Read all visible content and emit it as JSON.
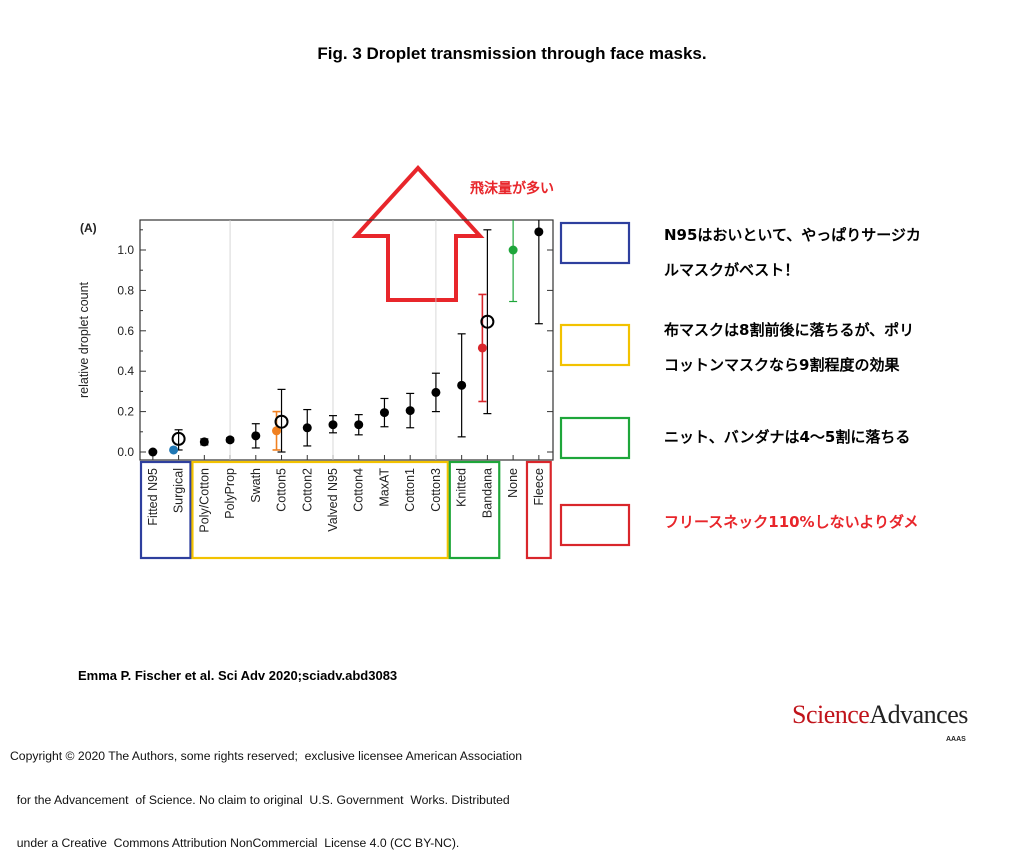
{
  "figure_title": "Fig. 3 Droplet transmission through face masks.",
  "panel_label": "(A)",
  "arrow_label": "飛沫量が多い",
  "annotations": [
    {
      "lines": [
        "N95はおいといて、やっぱりサージカ",
        "ルマスクがベスト！"
      ],
      "color": "#000000"
    },
    {
      "lines": [
        "布マスクは8割前後に落ちるが、ポリ",
        "コットンマスクなら9割程度の効果"
      ],
      "color": "#000000"
    },
    {
      "lines": [
        "ニット、バンダナは4～5割に落ちる"
      ],
      "color": "#000000"
    },
    {
      "lines": [
        "フリースネック110%しないよりダメ"
      ],
      "color": "#e8262b"
    }
  ],
  "group_colors": {
    "blue": "#2e3f9e",
    "yellow": "#f2c200",
    "green": "#1ea63a",
    "red": "#d9262b"
  },
  "chart_data": {
    "type": "scatter",
    "ylabel": "relative droplet count",
    "ylim": [
      -0.04,
      1.15
    ],
    "yticks": [
      "0.0",
      "0.2",
      "0.4",
      "0.6",
      "0.8",
      "1.0"
    ],
    "points": [
      {
        "label": "Fitted N95",
        "y": 0.0,
        "err_lo": 0.0,
        "err_hi": 0.0,
        "marker": "filled",
        "color": "#000000"
      },
      {
        "label": "Surgical",
        "y": 0.065,
        "err_lo": 0.01,
        "err_hi": 0.11,
        "marker": "open",
        "color": "#000000",
        "extra": {
          "y": 0.01,
          "color": "#1f77b4"
        }
      },
      {
        "label": "Poly/Cotton",
        "y": 0.05,
        "err_lo": 0.035,
        "err_hi": 0.065,
        "marker": "filled",
        "color": "#000000"
      },
      {
        "label": "PolyProp",
        "y": 0.06,
        "err_lo": 0.05,
        "err_hi": 0.07,
        "marker": "filled",
        "color": "#000000"
      },
      {
        "label": "Swath",
        "y": 0.08,
        "err_lo": 0.02,
        "err_hi": 0.14,
        "marker": "filled",
        "color": "#000000"
      },
      {
        "label": "Cotton5",
        "y": 0.15,
        "err_lo": 0.0,
        "err_hi": 0.31,
        "marker": "open",
        "color": "#000000",
        "extra": {
          "y": 0.105,
          "color": "#f08020",
          "err_lo": 0.01,
          "err_hi": 0.2
        }
      },
      {
        "label": "Cotton2",
        "y": 0.12,
        "err_lo": 0.03,
        "err_hi": 0.21,
        "marker": "filled",
        "color": "#000000"
      },
      {
        "label": "Valved N95",
        "y": 0.135,
        "err_lo": 0.095,
        "err_hi": 0.18,
        "marker": "filled",
        "color": "#000000"
      },
      {
        "label": "Cotton4",
        "y": 0.135,
        "err_lo": 0.085,
        "err_hi": 0.185,
        "marker": "filled",
        "color": "#000000"
      },
      {
        "label": "MaxAT",
        "y": 0.195,
        "err_lo": 0.125,
        "err_hi": 0.265,
        "marker": "filled",
        "color": "#000000"
      },
      {
        "label": "Cotton1",
        "y": 0.205,
        "err_lo": 0.12,
        "err_hi": 0.29,
        "marker": "filled",
        "color": "#000000"
      },
      {
        "label": "Cotton3",
        "y": 0.295,
        "err_lo": 0.2,
        "err_hi": 0.39,
        "marker": "filled",
        "color": "#000000"
      },
      {
        "label": "Knitted",
        "y": 0.33,
        "err_lo": 0.075,
        "err_hi": 0.585,
        "marker": "filled",
        "color": "#000000"
      },
      {
        "label": "Bandana",
        "y": 0.645,
        "err_lo": 0.19,
        "err_hi": 1.1,
        "marker": "open",
        "color": "#000000",
        "extra": {
          "y": 0.515,
          "color": "#d9262b",
          "err_lo": 0.25,
          "err_hi": 0.78
        }
      },
      {
        "label": "None",
        "y": 1.0,
        "err_lo": 0.745,
        "err_hi": 1.15,
        "marker": "filled",
        "color": "#1ea63a"
      },
      {
        "label": "Fleece",
        "y": 1.09,
        "err_lo": 0.635,
        "err_hi": 1.15,
        "marker": "filled",
        "color": "#000000"
      }
    ],
    "groups": [
      {
        "name": "blue",
        "from": 0,
        "to": 1
      },
      {
        "name": "yellow",
        "from": 2,
        "to": 11
      },
      {
        "name": "green",
        "from": 12,
        "to": 13
      },
      {
        "name": "red",
        "from": 15,
        "to": 15
      }
    ]
  },
  "citation": "Emma P. Fischer et al. Sci Adv 2020;sciadv.abd3083",
  "copyright_lines": [
    "Copyright © 2020 The Authors, some rights reserved;  exclusive licensee American Association",
    "  for the Advancement  of Science. No claim to original  U.S. Government  Works. Distributed",
    "  under a Creative  Commons Attribution NonCommercial  License 4.0 (CC BY-NC)."
  ],
  "logo": {
    "science": "Science",
    "advances": "Advances",
    "aaas": "AAAS"
  }
}
